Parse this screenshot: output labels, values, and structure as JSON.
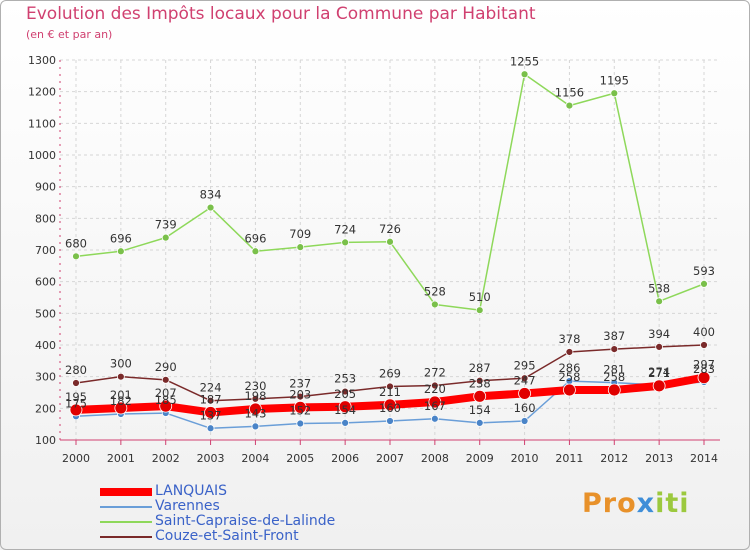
{
  "title": "Evolution des Impôts locaux pour la Commune par Habitant",
  "subtitle": "(en € et par an)",
  "brand": {
    "part1": "Pro",
    "part2": "x",
    "part3": "iti"
  },
  "chart_data": {
    "type": "line",
    "title": "Evolution des Impôts locaux pour la Commune par Habitant",
    "ylabel": "(en € et par an)",
    "ylim": [
      100,
      1300
    ],
    "yticks": [
      100,
      200,
      300,
      400,
      500,
      600,
      700,
      800,
      900,
      1000,
      1100,
      1200,
      1300
    ],
    "x": [
      2000,
      2001,
      2002,
      2003,
      2004,
      2005,
      2006,
      2007,
      2008,
      2009,
      2010,
      2011,
      2012,
      2013,
      2014
    ],
    "series": [
      {
        "name": "Saint-Capraise-de-Lalinde",
        "color": "#8ed85a",
        "marker": "#7ac04a",
        "values": [
          680,
          696,
          739,
          834,
          696,
          709,
          724,
          726,
          528,
          510,
          1255,
          1156,
          1195,
          538,
          593
        ],
        "labels": [
          "680",
          "696",
          "739",
          "834",
          "696",
          "709",
          "724",
          "726",
          "528",
          "510",
          "1255",
          "1156",
          "1195",
          "538",
          "593"
        ]
      },
      {
        "name": "Couze-et-Saint-Front",
        "color": "#7a2a2a",
        "marker": "#7a2a2a",
        "values": [
          280,
          300,
          290,
          224,
          230,
          237,
          253,
          269,
          272,
          287,
          295,
          378,
          387,
          394,
          400
        ],
        "labels": [
          "280",
          "300",
          "290",
          "224",
          "230",
          "237",
          "253",
          "269",
          "272",
          "287",
          "295",
          "378",
          "387",
          "394",
          "400"
        ]
      },
      {
        "name": "Varennes",
        "color": "#6a9ed8",
        "marker": "#4a84c8",
        "values": [
          175,
          182,
          185,
          137,
          143,
          152,
          154,
          160,
          167,
          154,
          160,
          286,
          281,
          274,
          283
        ],
        "labels": [
          "175",
          "182",
          "185",
          "137",
          "143",
          "152",
          "154",
          "160",
          "167",
          "154",
          "160",
          "286",
          "281",
          "274",
          "283"
        ]
      },
      {
        "name": "LANQUAIS",
        "color": "#ff0000",
        "marker": "#e00000",
        "values": [
          195,
          201,
          207,
          187,
          198,
          203,
          205,
          211,
          220,
          238,
          247,
          258,
          258,
          271,
          297
        ],
        "labels": [
          "195",
          "201",
          "207",
          "187",
          "198",
          "203",
          "205",
          "211",
          "220",
          "238",
          "247",
          "258",
          "258",
          "271",
          "297"
        ]
      }
    ],
    "legend": [
      "LANQUAIS",
      "Varennes",
      "Saint-Capraise-de-Lalinde",
      "Couze-et-Saint-Front"
    ]
  }
}
